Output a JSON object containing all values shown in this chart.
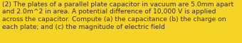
{
  "lines": [
    "(2) The plates of a parallel plate capacitor in vacuum are 5.0mm apart",
    "and 2.0m^2 in area. A potential difference of 10,000 V is applied",
    "across the capacitor. Compute (a) the capacitance (b) the charge on",
    "each plate; and (c) the magnitude of electric field"
  ],
  "background_color": "#f5d327",
  "text_color": "#3d3000",
  "font_size": 6.6,
  "fig_width": 3.4,
  "fig_height": 0.61,
  "dpi": 100
}
